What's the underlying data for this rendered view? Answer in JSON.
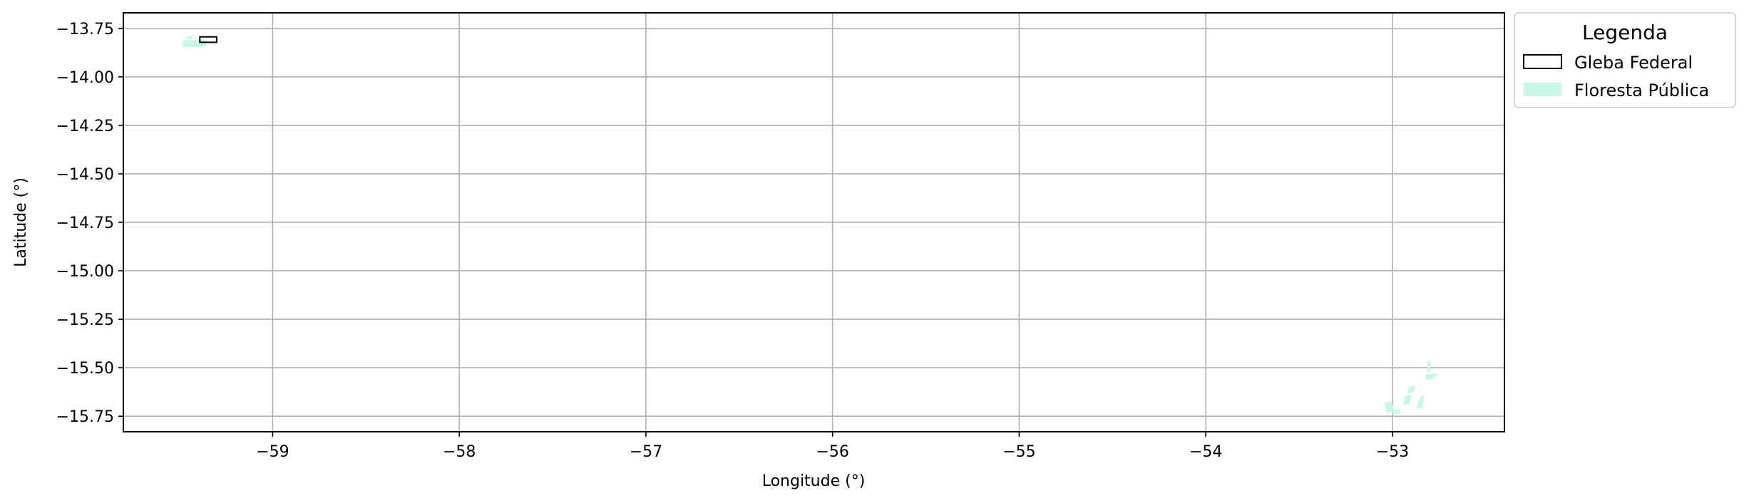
{
  "chart_data": {
    "type": "map",
    "xlabel": "Longitude (°)",
    "ylabel": "Latitude (°)",
    "xlim": [
      -59.8,
      -52.4
    ],
    "ylim": [
      -15.83,
      -13.67
    ],
    "xticks": [
      -59,
      -58,
      -57,
      -56,
      -55,
      -54,
      -53
    ],
    "xtick_labels": [
      "−59",
      "−58",
      "−57",
      "−56",
      "−55",
      "−54",
      "−53"
    ],
    "yticks": [
      -13.75,
      -14.0,
      -14.25,
      -14.5,
      -14.75,
      -15.0,
      -15.25,
      -15.5,
      -15.75
    ],
    "ytick_labels": [
      "−13.75",
      "−14.00",
      "−14.25",
      "−14.50",
      "−14.75",
      "−15.00",
      "−15.25",
      "−15.50",
      "−15.75"
    ],
    "grid": true,
    "legend": {
      "title": "Legenda",
      "placement": "outside-top-right",
      "entries": [
        {
          "label": "Gleba Federal",
          "style": "outline",
          "edge_color": "#000000",
          "fill_color": "none"
        },
        {
          "label": "Floresta Pública",
          "style": "fill",
          "edge_color": "none",
          "fill_color": "#c8f7e8"
        }
      ]
    },
    "layers": [
      {
        "name": "Gleba Federal",
        "color": "#000000",
        "polygons": [
          [
            [
              -59.39,
              -13.794
            ],
            [
              -59.3,
              -13.794
            ],
            [
              -59.3,
              -13.822
            ],
            [
              -59.39,
              -13.822
            ]
          ]
        ]
      },
      {
        "name": "Floresta Pública",
        "color": "#c8f7e8",
        "polygons": [
          [
            [
              -59.48,
              -13.812
            ],
            [
              -59.36,
              -13.812
            ],
            [
              -59.36,
              -13.845
            ],
            [
              -59.48,
              -13.845
            ]
          ],
          [
            [
              -59.46,
              -13.793
            ],
            [
              -59.43,
              -13.793
            ],
            [
              -59.43,
              -13.803
            ],
            [
              -59.46,
              -13.803
            ]
          ],
          [
            [
              -53.04,
              -15.68
            ],
            [
              -53.01,
              -15.675
            ],
            [
              -52.99,
              -15.72
            ],
            [
              -53.03,
              -15.73
            ]
          ],
          [
            [
              -53.0,
              -15.72
            ],
            [
              -52.96,
              -15.715
            ],
            [
              -52.96,
              -15.735
            ],
            [
              -53.0,
              -15.735
            ]
          ],
          [
            [
              -52.93,
              -15.645
            ],
            [
              -52.9,
              -15.64
            ],
            [
              -52.91,
              -15.685
            ],
            [
              -52.94,
              -15.69
            ]
          ],
          [
            [
              -52.91,
              -15.6
            ],
            [
              -52.88,
              -15.595
            ],
            [
              -52.89,
              -15.625
            ],
            [
              -52.92,
              -15.63
            ]
          ],
          [
            [
              -52.85,
              -15.65
            ],
            [
              -52.83,
              -15.645
            ],
            [
              -52.84,
              -15.705
            ],
            [
              -52.87,
              -15.71
            ]
          ],
          [
            [
              -52.82,
              -15.535
            ],
            [
              -52.76,
              -15.53
            ],
            [
              -52.78,
              -15.555
            ],
            [
              -52.82,
              -15.56
            ]
          ],
          [
            [
              -52.81,
              -15.47
            ],
            [
              -52.8,
              -15.47
            ],
            [
              -52.8,
              -15.52
            ],
            [
              -52.81,
              -15.52
            ]
          ]
        ]
      }
    ]
  }
}
